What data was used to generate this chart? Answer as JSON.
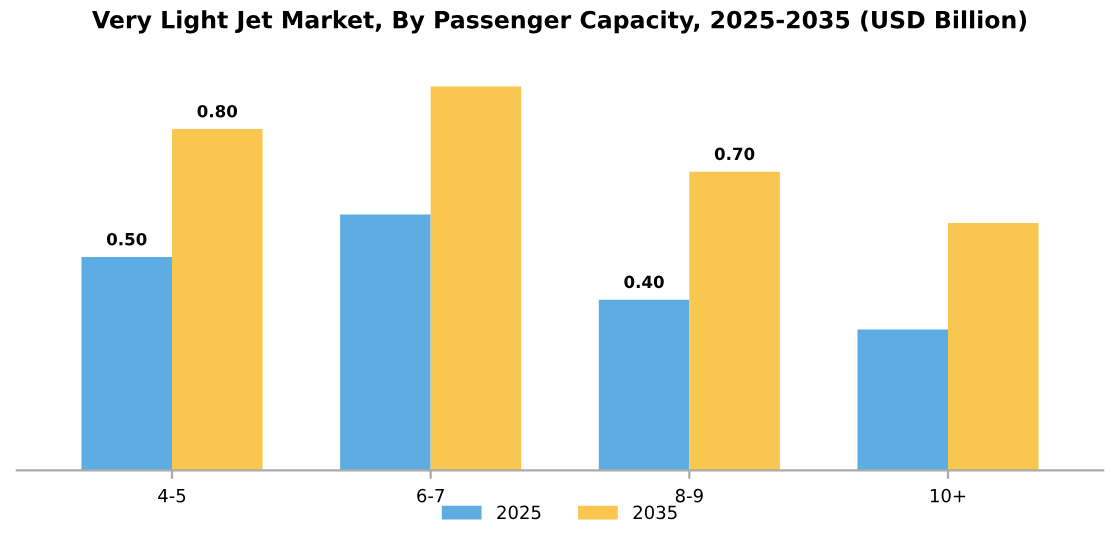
{
  "chart_data": {
    "type": "bar",
    "title": "Very Light Jet Market, By Passenger Capacity, 2025-2035 (USD Billion)",
    "categories": [
      "4-5",
      "6-7",
      "8-9",
      "10+"
    ],
    "series": [
      {
        "name": "2025",
        "color": "#5dade2",
        "values": [
          0.5,
          0.6,
          0.4,
          0.33
        ],
        "value_labels": [
          "0.50",
          null,
          "0.40",
          null
        ]
      },
      {
        "name": "2035",
        "color": "#f9c74f",
        "values": [
          0.8,
          0.9,
          0.7,
          0.58
        ],
        "value_labels": [
          "0.80",
          null,
          "0.70",
          null
        ]
      }
    ],
    "tick_labels": "x",
    "grid": false,
    "legend": "bottom"
  }
}
